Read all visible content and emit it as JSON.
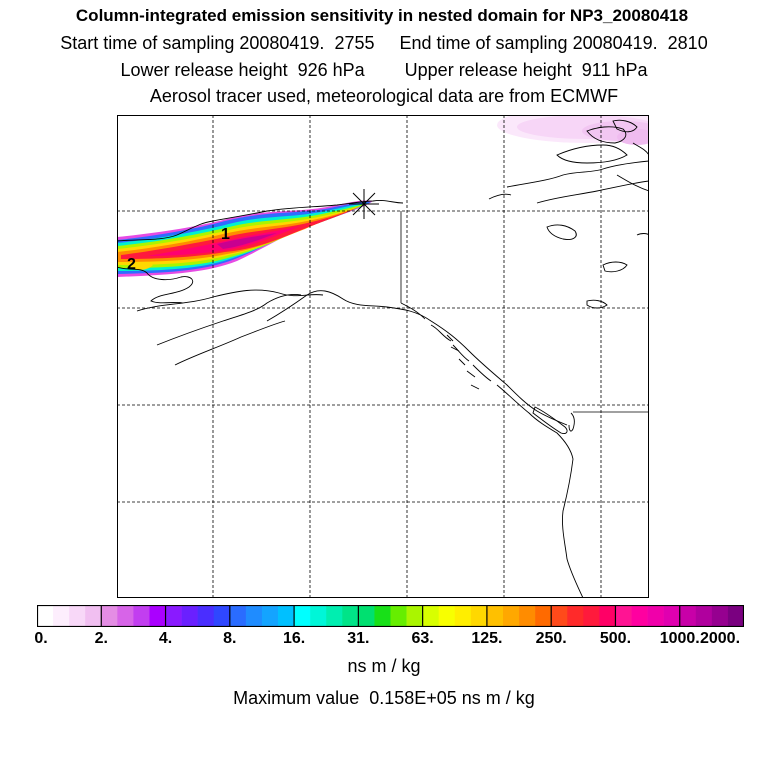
{
  "header": {
    "title": "Column-integrated emission sensitivity in nested domain for NP3_20080418",
    "sampling_line": "Start time of sampling 20080419.  2755     End time of sampling 20080419.  2810",
    "release_line": "Lower release height  926 hPa        Upper release height  911 hPa",
    "tracer_line": "Aerosol tracer used, meteorological data are from ECMWF"
  },
  "map": {
    "labels": {
      "cluster_1": "1",
      "cluster_2": "2"
    }
  },
  "colorbar": {
    "ticks": [
      "0.",
      "2.",
      "4.",
      "8.",
      "16.",
      "31.",
      "63.",
      "125.",
      "250.",
      "500.",
      "1000.",
      "2000."
    ],
    "colors": [
      "#ffffff",
      "#fdeefd",
      "#f8d8f8",
      "#f1bff1",
      "#e48de4",
      "#d764e8",
      "#c23ef0",
      "#aa00ff",
      "#8a1aff",
      "#6a20ff",
      "#4a2eff",
      "#2f47ff",
      "#2a6cff",
      "#1f8cff",
      "#14a4ff",
      "#00c0ff",
      "#00ffff",
      "#00f6d8",
      "#00eeb0",
      "#00e488",
      "#00e070",
      "#18e018",
      "#66ee00",
      "#aaf500",
      "#d8ff00",
      "#f8ff00",
      "#ffee00",
      "#ffd800",
      "#ffc000",
      "#ffa800",
      "#ff8c00",
      "#ff6a00",
      "#ff4a1a",
      "#ff2a2a",
      "#ff1a3c",
      "#ff0066",
      "#ff1493",
      "#ff00a0",
      "#f000aa",
      "#e000b0",
      "#c800a8",
      "#b0009e",
      "#960090",
      "#7a0080"
    ],
    "units": "ns m / kg"
  },
  "footer": {
    "max_value": "Maximum value  0.158E+05 ns m / kg"
  }
}
